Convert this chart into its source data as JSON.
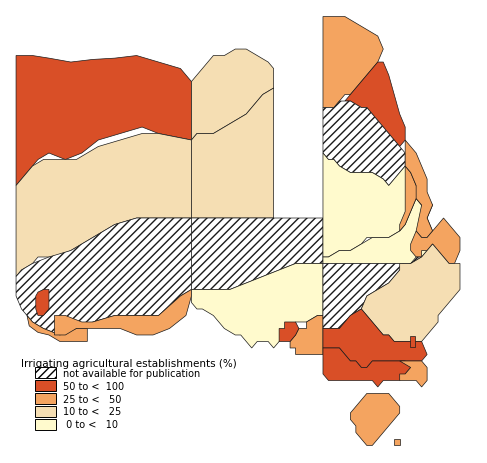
{
  "legend_title": "Irrigating agricultural establishments (%)",
  "colors": {
    "hatch_bg": "#ffffff",
    "c50_100": "#d94f27",
    "c25_50": "#f4a460",
    "c10_25": "#f5deb3",
    "c0_10": "#fffacd",
    "border": "#1a1a1a",
    "background": "#ffffff"
  },
  "regions": {
    "WA_kimberley": {
      "color": "c50_100",
      "hatch": null
    },
    "WA_pilbara": {
      "color": "c10_25",
      "hatch": null
    },
    "WA_midwest": {
      "color": "c10_25",
      "hatch": null
    },
    "WA_goldfields": {
      "color": null,
      "hatch": "////"
    },
    "WA_southwest": {
      "color": "c25_50",
      "hatch": null
    },
    "WA_perth": {
      "color": "c50_100",
      "hatch": null
    },
    "WA_great_southern": {
      "color": "c25_50",
      "hatch": null
    },
    "NT_darwin": {
      "color": "c10_25",
      "hatch": null
    },
    "NT_central": {
      "color": "c10_25",
      "hatch": null
    },
    "SA_outback": {
      "color": null,
      "hatch": "////"
    },
    "SA_yorke_lower_nth": {
      "color": "c0_10",
      "hatch": null
    },
    "SA_south_east": {
      "color": "c25_50",
      "hatch": null
    },
    "SA_adelaide": {
      "color": "c50_100",
      "hatch": null
    },
    "QLD_cape_york": {
      "color": "c25_50",
      "hatch": null
    },
    "QLD_nth_qld": {
      "color": "c50_100",
      "hatch": null
    },
    "QLD_nth_west": {
      "color": null,
      "hatch": "////"
    },
    "QLD_central_west": {
      "color": "c0_10",
      "hatch": null
    },
    "QLD_mackay": {
      "color": "c25_50",
      "hatch": null
    },
    "QLD_fitzroy": {
      "color": "c25_50",
      "hatch": null
    },
    "QLD_darling_downs": {
      "color": "c25_50",
      "hatch": null
    },
    "QLD_south_east": {
      "color": "c25_50",
      "hatch": null
    },
    "QLD_southwest": {
      "color": "c0_10",
      "hatch": null
    },
    "NSW_far_west": {
      "color": null,
      "hatch": "////"
    },
    "NSW_murray": {
      "color": "c50_100",
      "hatch": null
    },
    "NSW_riverina": {
      "color": "c50_100",
      "hatch": null
    },
    "NSW_central_west": {
      "color": "c10_25",
      "hatch": null
    },
    "NSW_hunter": {
      "color": "c25_50",
      "hatch": null
    },
    "NSW_nth_coast": {
      "color": "c25_50",
      "hatch": null
    },
    "NSW_sth_coast": {
      "color": "c25_50",
      "hatch": null
    },
    "VIC_western": {
      "color": "c50_100",
      "hatch": null
    },
    "VIC_central": {
      "color": "c50_100",
      "hatch": null
    },
    "VIC_eastern": {
      "color": "c25_50",
      "hatch": null
    },
    "ACT": {
      "color": "c50_100",
      "hatch": null
    },
    "TAS": {
      "color": "c25_50",
      "hatch": null
    }
  },
  "lon_range": [
    113.0,
    154.0
  ],
  "lat_range": [
    -44.0,
    -10.0
  ]
}
